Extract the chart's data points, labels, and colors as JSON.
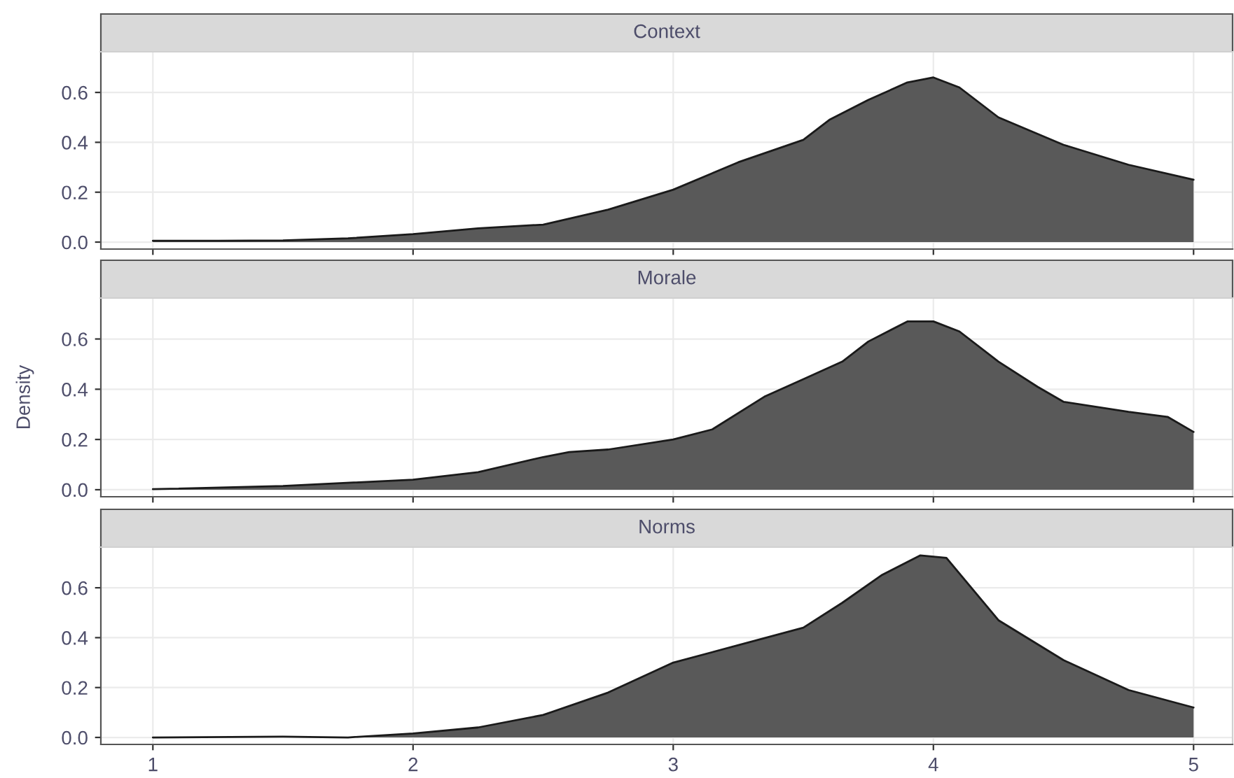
{
  "chart_data": [
    {
      "type": "area",
      "title": "Context",
      "x": [
        1,
        1.25,
        1.5,
        1.75,
        2,
        2.25,
        2.5,
        2.75,
        3,
        3.25,
        3.5,
        3.6,
        3.75,
        3.9,
        4,
        4.1,
        4.25,
        4.5,
        4.75,
        5
      ],
      "values": [
        0.005,
        0.005,
        0.007,
        0.015,
        0.032,
        0.055,
        0.07,
        0.13,
        0.21,
        0.32,
        0.41,
        0.49,
        0.57,
        0.64,
        0.66,
        0.62,
        0.5,
        0.39,
        0.31,
        0.25
      ],
      "color": "#595959",
      "xlim": [
        0.8,
        5.15
      ],
      "ylim": [
        -0.028,
        0.763
      ],
      "xticks": [
        1,
        2,
        3,
        4,
        5
      ],
      "yticks": [
        {
          "value": 0,
          "label": "0.0"
        },
        {
          "value": 0.2,
          "label": "0.2"
        },
        {
          "value": 0.4,
          "label": "0.4"
        },
        {
          "value": 0.6,
          "label": "0.6"
        }
      ],
      "grid": true,
      "tick_labels": "y"
    },
    {
      "type": "area",
      "title": "Morale",
      "ylabel": "Density",
      "x": [
        1,
        1.5,
        2,
        2.25,
        2.5,
        2.6,
        2.75,
        3,
        3.15,
        3.35,
        3.5,
        3.65,
        3.75,
        3.9,
        4,
        4.1,
        4.25,
        4.4,
        4.5,
        4.75,
        4.9,
        5
      ],
      "values": [
        0.002,
        0.015,
        0.04,
        0.07,
        0.13,
        0.15,
        0.16,
        0.2,
        0.24,
        0.37,
        0.44,
        0.51,
        0.59,
        0.67,
        0.67,
        0.63,
        0.51,
        0.41,
        0.35,
        0.31,
        0.29,
        0.23
      ],
      "color": "#595959",
      "xlim": [
        0.8,
        5.15
      ],
      "ylim": [
        -0.028,
        0.763
      ],
      "xticks": [
        1,
        2,
        3,
        4,
        5
      ],
      "yticks": [
        {
          "value": 0,
          "label": "0.0"
        },
        {
          "value": 0.2,
          "label": "0.2"
        },
        {
          "value": 0.4,
          "label": "0.4"
        },
        {
          "value": 0.6,
          "label": "0.6"
        }
      ],
      "grid": true,
      "tick_labels": "y"
    },
    {
      "type": "area",
      "title": "Norms",
      "x": [
        1,
        1.5,
        1.75,
        2,
        2.25,
        2.5,
        2.75,
        3,
        3.25,
        3.5,
        3.65,
        3.8,
        3.95,
        4.05,
        4.25,
        4.5,
        4.75,
        5
      ],
      "values": [
        0.0,
        0.003,
        0.0,
        0.016,
        0.04,
        0.09,
        0.18,
        0.3,
        0.37,
        0.44,
        0.54,
        0.65,
        0.73,
        0.72,
        0.47,
        0.31,
        0.19,
        0.12
      ],
      "color": "#595959",
      "xlim": [
        0.8,
        5.15
      ],
      "ylim": [
        -0.028,
        0.763
      ],
      "xticks": [
        1,
        2,
        3,
        4,
        5
      ],
      "yticks": [
        {
          "value": 0,
          "label": "0.0"
        },
        {
          "value": 0.2,
          "label": "0.2"
        },
        {
          "value": 0.4,
          "label": "0.4"
        },
        {
          "value": 0.6,
          "label": "0.6"
        }
      ],
      "grid": true
    }
  ]
}
